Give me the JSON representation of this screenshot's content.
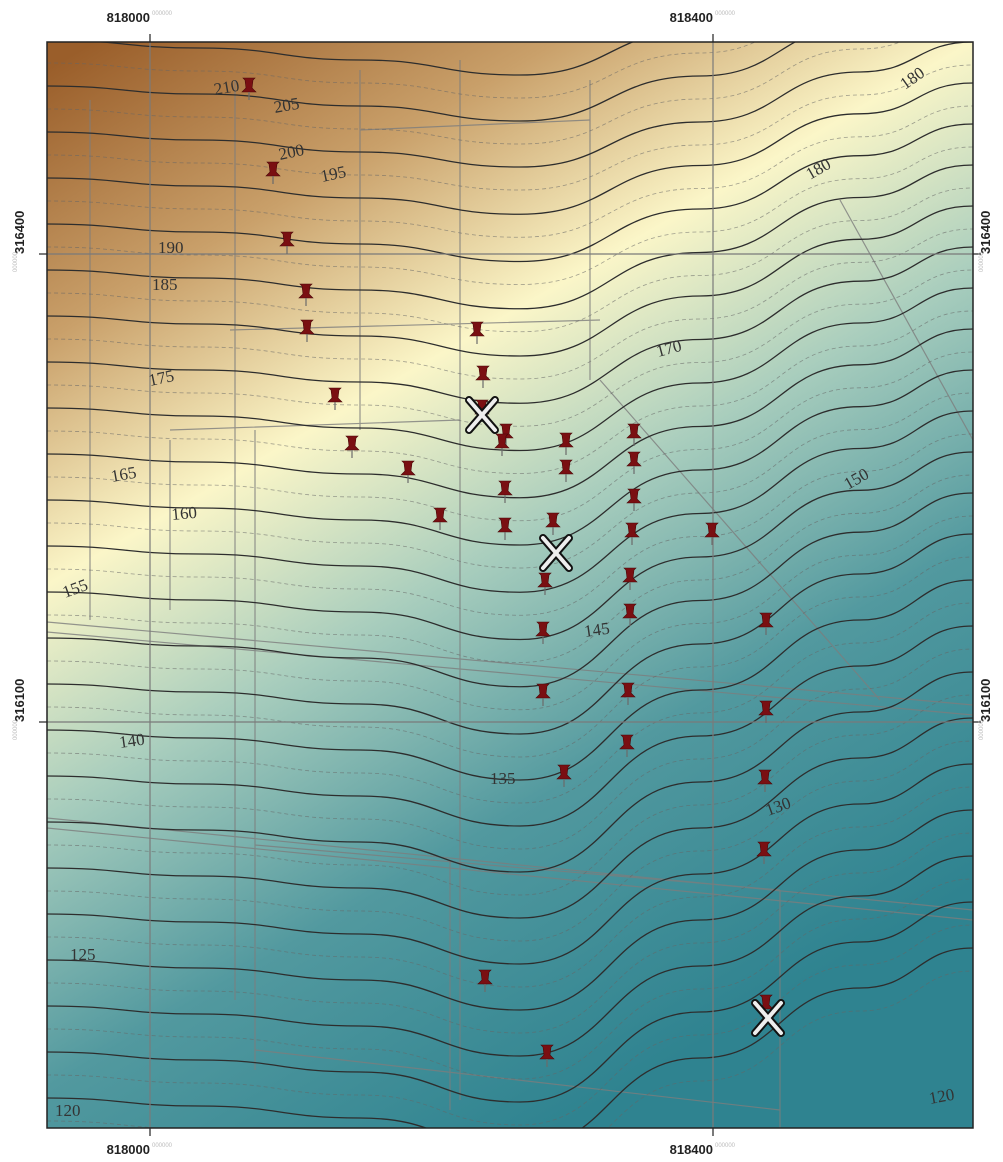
{
  "map": {
    "x_labels": [
      {
        "text": "818000",
        "suffix": "000000"
      },
      {
        "text": "818400",
        "suffix": "000000"
      }
    ],
    "y_labels": [
      {
        "text": "316400",
        "suffix": "000000"
      },
      {
        "text": "316100",
        "suffix": "000000"
      }
    ],
    "contour_labels": [
      "210",
      "205",
      "200",
      "195",
      "190",
      "185",
      "180",
      "180",
      "175",
      "170",
      "165",
      "160",
      "155",
      "150",
      "145",
      "140",
      "135",
      "130",
      "125",
      "120",
      "120"
    ]
  }
}
